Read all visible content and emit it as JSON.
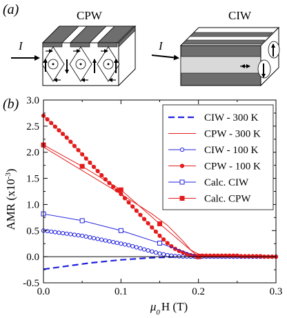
{
  "panel_a": {
    "label": "(a)",
    "cpw": {
      "title": "CPW",
      "current_label": "I"
    },
    "ciw": {
      "title": "CIW",
      "current_label": "I"
    }
  },
  "panel_b": {
    "label": "(b)"
  },
  "colors": {
    "ciw": "#1f1fe0",
    "cpw": "#e31b1b"
  },
  "chart_data": {
    "type": "line",
    "xlabel_parts": [
      "μ",
      "0",
      "H (T)"
    ],
    "ylabel_parts": [
      "AMR (x10",
      "-3",
      ")"
    ],
    "xlim": [
      0,
      0.3
    ],
    "ylim": [
      -0.5,
      3.0
    ],
    "xticks": [
      0.0,
      0.1,
      0.2,
      0.3
    ],
    "xtick_labels": [
      "0.0",
      "0.1",
      "0.2",
      "0.3"
    ],
    "yticks": [
      -0.5,
      0.0,
      0.5,
      1.0,
      1.5,
      2.0,
      2.5,
      3.0
    ],
    "ytick_labels": [
      "-0.5",
      "0.0",
      "0.5",
      "1.0",
      "1.5",
      "2.0",
      "2.5",
      "3.0"
    ],
    "grid": false,
    "legend_position": "top-right",
    "series": [
      {
        "name": "CIW - 300 K",
        "color": "#1f1fe0",
        "style": "dashed",
        "marker": "none",
        "x": [
          0,
          0.02,
          0.04,
          0.06,
          0.08,
          0.1,
          0.12,
          0.14,
          0.16,
          0.18,
          0.2,
          0.25,
          0.3
        ],
        "y": [
          -0.24,
          -0.2,
          -0.16,
          -0.12,
          -0.09,
          -0.06,
          -0.04,
          -0.02,
          -0.01,
          0.0,
          0.0,
          0.0,
          0.0
        ]
      },
      {
        "name": "CPW - 300 K",
        "color": "#e31b1b",
        "style": "solid",
        "marker": "none",
        "x": [
          0,
          0.02,
          0.04,
          0.06,
          0.08,
          0.1,
          0.12,
          0.14,
          0.16,
          0.18,
          0.19,
          0.2,
          0.22,
          0.25,
          0.3
        ],
        "y": [
          2.1,
          1.92,
          1.74,
          1.56,
          1.38,
          1.2,
          1.01,
          0.82,
          0.6,
          0.3,
          0.13,
          0.05,
          0.02,
          0.01,
          0.0
        ]
      },
      {
        "name": "CIW - 100 K",
        "color": "#1f1fe0",
        "style": "solid",
        "marker": "open-circle",
        "x": [
          0,
          0.005,
          0.01,
          0.015,
          0.02,
          0.025,
          0.03,
          0.035,
          0.04,
          0.045,
          0.05,
          0.055,
          0.06,
          0.065,
          0.07,
          0.075,
          0.08,
          0.085,
          0.09,
          0.095,
          0.1,
          0.105,
          0.11,
          0.115,
          0.12,
          0.125,
          0.13,
          0.135,
          0.14,
          0.145,
          0.15,
          0.155,
          0.16,
          0.165,
          0.17,
          0.175,
          0.18,
          0.185,
          0.19,
          0.195,
          0.2,
          0.205,
          0.21,
          0.215,
          0.22,
          0.225,
          0.23,
          0.235,
          0.24,
          0.245,
          0.25,
          0.255,
          0.26,
          0.265,
          0.27,
          0.275,
          0.28,
          0.285,
          0.29,
          0.295,
          0.3
        ],
        "y": [
          0.5,
          0.49,
          0.48,
          0.47,
          0.46,
          0.45,
          0.44,
          0.43,
          0.42,
          0.41,
          0.4,
          0.385,
          0.37,
          0.355,
          0.34,
          0.325,
          0.31,
          0.295,
          0.28,
          0.265,
          0.25,
          0.235,
          0.22,
          0.2,
          0.18,
          0.16,
          0.14,
          0.12,
          0.1,
          0.08,
          0.06,
          0.045,
          0.03,
          0.02,
          0.012,
          0.006,
          0.003,
          0.002,
          0.001,
          0.0,
          0.0,
          0.0,
          0.0,
          0.0,
          0.0,
          0.0,
          0.0,
          0.0,
          0.0,
          0.0,
          0.0,
          0.0,
          0.0,
          0.0,
          0.0,
          0.0,
          0.0,
          0.0,
          0.0,
          0.0,
          0.0
        ]
      },
      {
        "name": "CPW - 100 K",
        "color": "#e31b1b",
        "style": "solid",
        "marker": "filled-circle",
        "x": [
          0,
          0.005,
          0.01,
          0.015,
          0.02,
          0.025,
          0.03,
          0.035,
          0.04,
          0.045,
          0.05,
          0.055,
          0.06,
          0.065,
          0.07,
          0.075,
          0.08,
          0.085,
          0.09,
          0.095,
          0.1,
          0.105,
          0.11,
          0.115,
          0.12,
          0.125,
          0.13,
          0.135,
          0.14,
          0.145,
          0.15,
          0.155,
          0.16,
          0.165,
          0.17,
          0.175,
          0.18,
          0.185,
          0.19,
          0.195,
          0.2,
          0.205,
          0.21,
          0.215,
          0.22,
          0.225,
          0.23,
          0.235,
          0.24,
          0.245,
          0.25,
          0.255,
          0.26,
          0.265,
          0.27,
          0.275,
          0.28,
          0.285,
          0.29,
          0.295,
          0.3
        ],
        "y": [
          2.7,
          2.63,
          2.56,
          2.49,
          2.42,
          2.35,
          2.28,
          2.2,
          2.12,
          2.04,
          1.96,
          1.88,
          1.8,
          1.72,
          1.64,
          1.56,
          1.48,
          1.41,
          1.34,
          1.27,
          1.2,
          1.12,
          1.04,
          0.96,
          0.88,
          0.8,
          0.72,
          0.64,
          0.56,
          0.48,
          0.4,
          0.33,
          0.26,
          0.2,
          0.15,
          0.11,
          0.08,
          0.05,
          0.03,
          0.02,
          0.02,
          0.02,
          0.02,
          0.02,
          0.02,
          0.02,
          0.02,
          0.02,
          0.02,
          0.02,
          0.02,
          0.01,
          0.01,
          0.01,
          0.01,
          0.01,
          0.01,
          0.0,
          0.0,
          0.0,
          0.0
        ]
      },
      {
        "name": "Calc. CIW",
        "color": "#1f1fe0",
        "style": "solid",
        "marker": "open-square",
        "x": [
          0,
          0.05,
          0.1,
          0.15,
          0.2
        ],
        "y": [
          0.82,
          0.69,
          0.5,
          0.26,
          0.0
        ]
      },
      {
        "name": "Calc. CPW",
        "color": "#e31b1b",
        "style": "solid",
        "marker": "filled-square",
        "x": [
          0,
          0.05,
          0.1,
          0.15,
          0.2
        ],
        "y": [
          2.14,
          1.73,
          1.28,
          0.63,
          0.0
        ]
      }
    ]
  }
}
